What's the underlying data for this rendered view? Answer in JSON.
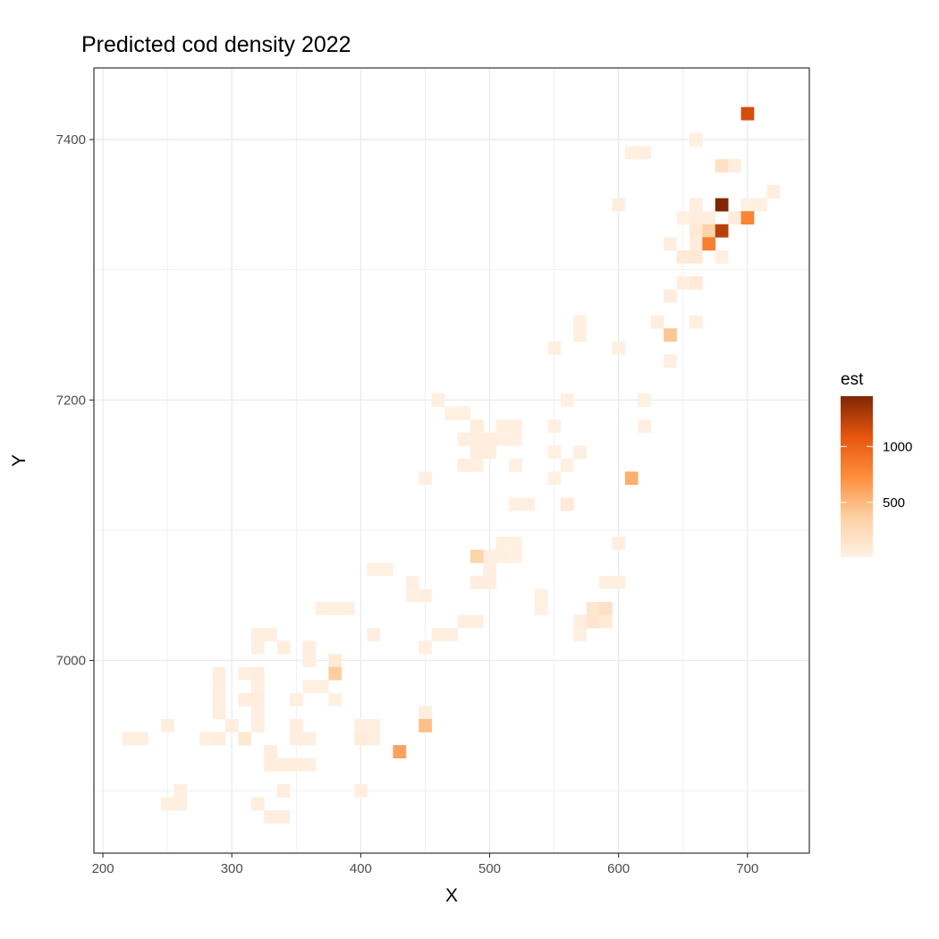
{
  "chart_data": {
    "type": "heatmap",
    "title": "Predicted cod density 2022",
    "xlabel": "X",
    "ylabel": "Y",
    "xlim": [
      193,
      748
    ],
    "ylim": [
      6852,
      7455
    ],
    "x_ticks": [
      200,
      300,
      400,
      500,
      600,
      700
    ],
    "y_ticks": [
      7000,
      7200,
      7400
    ],
    "cell_size": 10,
    "grid": true,
    "legend": {
      "title": "est",
      "placement": "right",
      "range": [
        10,
        1450
      ],
      "ticks": [
        500,
        1000
      ],
      "colors": [
        "#fff1e5",
        "#fdd0a2",
        "#fd8d3c",
        "#e6550d",
        "#7f2704"
      ]
    },
    "cells": [
      [
        700,
        7420,
        1150
      ],
      [
        610,
        7390,
        25
      ],
      [
        620,
        7390,
        30
      ],
      [
        660,
        7400,
        35
      ],
      [
        680,
        7380,
        180
      ],
      [
        690,
        7380,
        55
      ],
      [
        600,
        7350,
        40
      ],
      [
        660,
        7350,
        45
      ],
      [
        680,
        7350,
        1450
      ],
      [
        700,
        7350,
        25
      ],
      [
        710,
        7350,
        35
      ],
      [
        720,
        7360,
        45
      ],
      [
        650,
        7340,
        25
      ],
      [
        660,
        7340,
        45
      ],
      [
        670,
        7340,
        55
      ],
      [
        690,
        7340,
        60
      ],
      [
        700,
        7340,
        780
      ],
      [
        660,
        7330,
        90
      ],
      [
        670,
        7330,
        350
      ],
      [
        680,
        7330,
        1250
      ],
      [
        640,
        7320,
        40
      ],
      [
        660,
        7320,
        65
      ],
      [
        670,
        7320,
        820
      ],
      [
        650,
        7310,
        85
      ],
      [
        660,
        7310,
        95
      ],
      [
        680,
        7310,
        25
      ],
      [
        650,
        7290,
        35
      ],
      [
        660,
        7290,
        90
      ],
      [
        640,
        7280,
        40
      ],
      [
        630,
        7260,
        45
      ],
      [
        660,
        7260,
        35
      ],
      [
        570,
        7260,
        25
      ],
      [
        570,
        7250,
        25
      ],
      [
        640,
        7250,
        420
      ],
      [
        550,
        7240,
        30
      ],
      [
        600,
        7240,
        30
      ],
      [
        640,
        7230,
        35
      ],
      [
        460,
        7200,
        35
      ],
      [
        560,
        7200,
        30
      ],
      [
        620,
        7200,
        25
      ],
      [
        470,
        7190,
        25
      ],
      [
        480,
        7190,
        25
      ],
      [
        490,
        7180,
        65
      ],
      [
        510,
        7180,
        30
      ],
      [
        520,
        7180,
        30
      ],
      [
        550,
        7180,
        35
      ],
      [
        620,
        7180,
        30
      ],
      [
        480,
        7170,
        35
      ],
      [
        490,
        7170,
        55
      ],
      [
        500,
        7170,
        45
      ],
      [
        510,
        7170,
        25
      ],
      [
        520,
        7170,
        25
      ],
      [
        490,
        7160,
        40
      ],
      [
        500,
        7160,
        50
      ],
      [
        550,
        7160,
        25
      ],
      [
        570,
        7160,
        35
      ],
      [
        480,
        7150,
        45
      ],
      [
        490,
        7150,
        35
      ],
      [
        520,
        7150,
        25
      ],
      [
        560,
        7150,
        25
      ],
      [
        450,
        7140,
        30
      ],
      [
        550,
        7140,
        25
      ],
      [
        610,
        7140,
        550
      ],
      [
        520,
        7120,
        30
      ],
      [
        530,
        7120,
        30
      ],
      [
        560,
        7120,
        90
      ],
      [
        510,
        7090,
        25
      ],
      [
        520,
        7090,
        25
      ],
      [
        600,
        7090,
        30
      ],
      [
        500,
        7080,
        35
      ],
      [
        510,
        7080,
        35
      ],
      [
        520,
        7080,
        25
      ],
      [
        490,
        7080,
        320
      ],
      [
        410,
        7070,
        25
      ],
      [
        420,
        7070,
        25
      ],
      [
        500,
        7070,
        30
      ],
      [
        440,
        7060,
        30
      ],
      [
        490,
        7060,
        40
      ],
      [
        500,
        7060,
        40
      ],
      [
        590,
        7060,
        35
      ],
      [
        600,
        7060,
        30
      ],
      [
        440,
        7050,
        25
      ],
      [
        450,
        7050,
        30
      ],
      [
        540,
        7050,
        25
      ],
      [
        370,
        7040,
        30
      ],
      [
        380,
        7040,
        30
      ],
      [
        390,
        7040,
        30
      ],
      [
        540,
        7040,
        25
      ],
      [
        580,
        7040,
        120
      ],
      [
        590,
        7040,
        180
      ],
      [
        570,
        7030,
        45
      ],
      [
        580,
        7030,
        140
      ],
      [
        590,
        7030,
        90
      ],
      [
        480,
        7030,
        35
      ],
      [
        490,
        7030,
        35
      ],
      [
        570,
        7020,
        35
      ],
      [
        410,
        7020,
        40
      ],
      [
        460,
        7020,
        30
      ],
      [
        470,
        7020,
        30
      ],
      [
        320,
        7020,
        30
      ],
      [
        330,
        7020,
        30
      ],
      [
        320,
        7010,
        25
      ],
      [
        340,
        7010,
        45
      ],
      [
        360,
        7010,
        40
      ],
      [
        450,
        7010,
        35
      ],
      [
        360,
        7000,
        35
      ],
      [
        380,
        7000,
        90
      ],
      [
        290,
        6990,
        40
      ],
      [
        310,
        6990,
        30
      ],
      [
        320,
        6990,
        45
      ],
      [
        380,
        6990,
        380
      ],
      [
        290,
        6980,
        35
      ],
      [
        320,
        6980,
        30
      ],
      [
        360,
        6980,
        25
      ],
      [
        370,
        6980,
        25
      ],
      [
        290,
        6970,
        30
      ],
      [
        310,
        6970,
        55
      ],
      [
        320,
        6970,
        45
      ],
      [
        350,
        6970,
        35
      ],
      [
        380,
        6970,
        25
      ],
      [
        290,
        6960,
        35
      ],
      [
        320,
        6960,
        35
      ],
      [
        450,
        6960,
        55
      ],
      [
        250,
        6950,
        45
      ],
      [
        300,
        6950,
        45
      ],
      [
        320,
        6950,
        30
      ],
      [
        350,
        6950,
        40
      ],
      [
        400,
        6950,
        35
      ],
      [
        410,
        6950,
        30
      ],
      [
        450,
        6950,
        460
      ],
      [
        220,
        6940,
        30
      ],
      [
        230,
        6940,
        30
      ],
      [
        280,
        6940,
        35
      ],
      [
        290,
        6940,
        50
      ],
      [
        310,
        6940,
        110
      ],
      [
        350,
        6940,
        40
      ],
      [
        360,
        6940,
        35
      ],
      [
        400,
        6940,
        65
      ],
      [
        410,
        6940,
        35
      ],
      [
        330,
        6930,
        40
      ],
      [
        430,
        6930,
        620
      ],
      [
        330,
        6920,
        45
      ],
      [
        340,
        6920,
        50
      ],
      [
        350,
        6920,
        45
      ],
      [
        360,
        6920,
        30
      ],
      [
        260,
        6900,
        35
      ],
      [
        340,
        6900,
        55
      ],
      [
        400,
        6900,
        40
      ],
      [
        250,
        6890,
        35
      ],
      [
        260,
        6890,
        35
      ],
      [
        320,
        6890,
        45
      ],
      [
        330,
        6880,
        40
      ],
      [
        340,
        6880,
        40
      ]
    ]
  }
}
